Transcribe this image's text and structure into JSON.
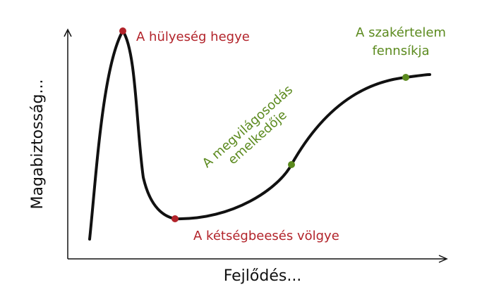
{
  "axes": {
    "x_label": "Fejlődés...",
    "y_label": "Magabiztosság..."
  },
  "points": [
    {
      "id": "peak",
      "label": "A hülyeség hegye",
      "color": "#b2232a"
    },
    {
      "id": "valley",
      "label": "A kétségbeesés völgye",
      "color": "#b2232a"
    },
    {
      "id": "slope",
      "label_lines": [
        "A megvilágosodás",
        "emelkedője"
      ],
      "color": "#5b8a1e"
    },
    {
      "id": "plateau",
      "label_lines": [
        "A szakértelem",
        "fennsíkja"
      ],
      "color": "#5b8a1e"
    }
  ],
  "curve_color": "#111111",
  "axis_color": "#111111"
}
